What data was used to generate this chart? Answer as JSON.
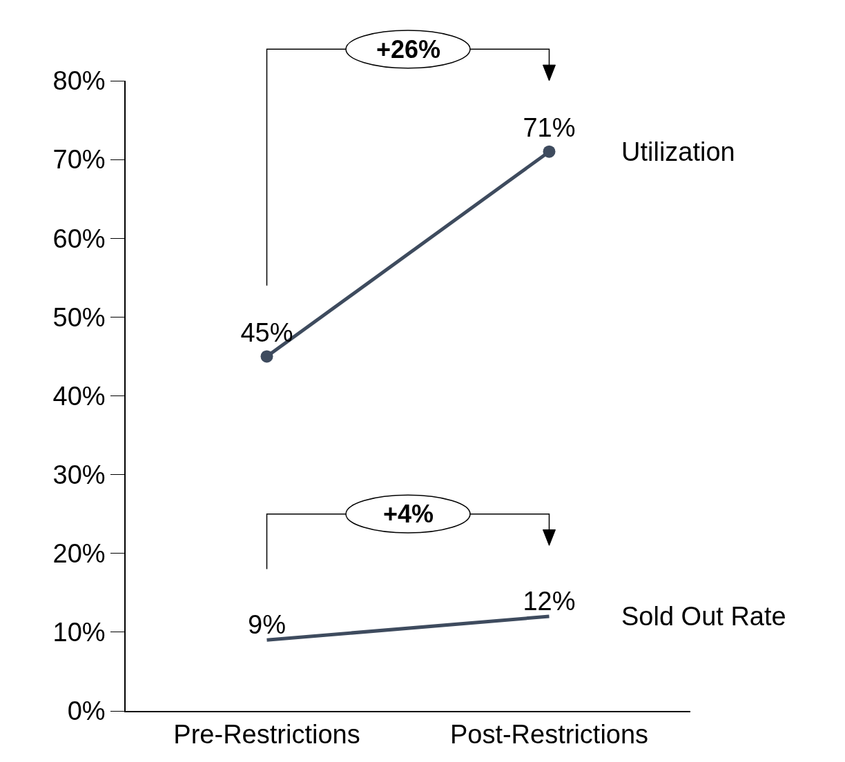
{
  "chart_data": {
    "type": "line",
    "categories": [
      "Pre-Restrictions",
      "Post-Restrictions"
    ],
    "series": [
      {
        "name": "Utilization",
        "color": "#3e4b5e",
        "values": [
          45,
          71
        ],
        "marker": "circle"
      },
      {
        "name": "Sold Out Rate",
        "color": "#3e4b5e",
        "values": [
          9,
          12
        ],
        "marker": "none"
      }
    ],
    "ylim": [
      0,
      80
    ],
    "yticks": [
      {
        "value": 0,
        "label": "0%"
      },
      {
        "value": 10,
        "label": "10%"
      },
      {
        "value": 20,
        "label": "20%"
      },
      {
        "value": 30,
        "label": "30%"
      },
      {
        "value": 40,
        "label": "40%"
      },
      {
        "value": 50,
        "label": "50%"
      },
      {
        "value": 60,
        "label": "60%"
      },
      {
        "value": 70,
        "label": "70%"
      },
      {
        "value": 80,
        "label": "80%"
      }
    ],
    "value_labels": [
      [
        "45%",
        "71%"
      ],
      [
        "9%",
        "12%"
      ]
    ],
    "annotations": [
      "+26%",
      "+4%"
    ],
    "grid": false,
    "legend": false,
    "line_style": "solid"
  }
}
